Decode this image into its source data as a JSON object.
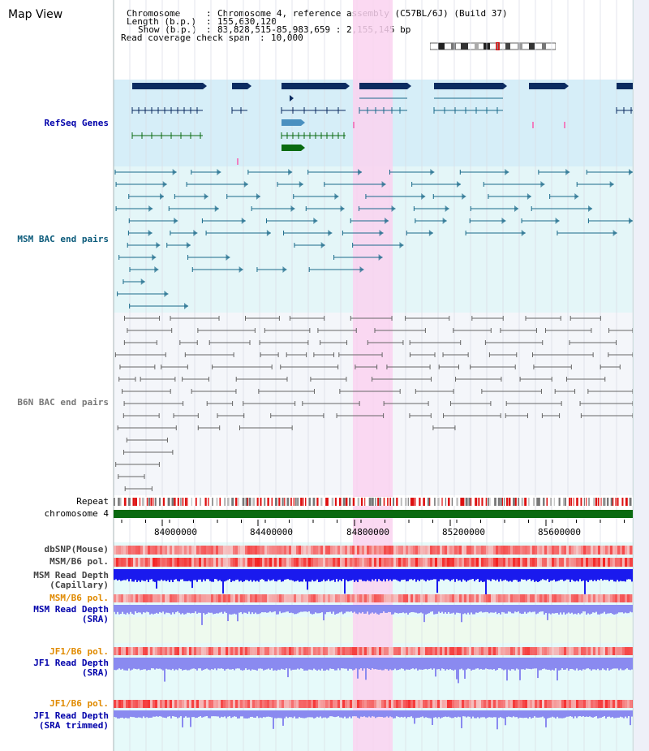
{
  "title": "Map View",
  "info": {
    "chromosome_label": "Chromosome",
    "chromosome_value": "Chromosome 4, reference assembly (C57BL/6J) (Build 37)",
    "length_label": "Length (b.p.)",
    "length_value": "155,630,120",
    "show_label": "Show (b.p.)",
    "show_value": "83,828,515-85,983,659 : 2,155,145 bp",
    "coverage_label": "Read coverage check span",
    "coverage_value": "10,000"
  },
  "tracks": {
    "refseq": "RefSeq Genes",
    "msm_bac": "MSM BAC end pairs",
    "b6n_bac": "B6N BAC end pairs",
    "repeat": "Repeat",
    "chromosome": "chromosome 4",
    "dbsnp": "dbSNP(Mouse)",
    "msm_b6_pol": "MSM/B6 pol.",
    "msm_rd_cap_1": "MSM Read Depth",
    "msm_rd_cap_2": "(Capillary)",
    "msm_b6_pol_2": "MSM/B6 pol.",
    "msm_rd_sra_1": "MSM Read Depth",
    "msm_rd_sra_2": "(SRA)",
    "jf1_b6_pol": "JF1/B6 pol.",
    "jf1_rd_sra_1": "JF1 Read Depth",
    "jf1_rd_sra_2": "(SRA)",
    "jf1_b6_pol_2": "JF1/B6 pol.",
    "jf1_rd_trim_1": "JF1 Read Depth",
    "jf1_rd_trim_2": "(SRA trimmed)"
  },
  "axis": {
    "ticks": [
      "84000000",
      "84400000",
      "84800000",
      "85200000",
      "85600000"
    ]
  },
  "colors": {
    "refseq_bg": "#d6eef8",
    "msm_bg": "#e4f6f8",
    "b6n_bg": "#f4f6fa",
    "highlight": "#fad2f0",
    "gene_dark": "#0b2b60",
    "gene_blue": "#4a90c0",
    "gene_green": "#0a6a10",
    "msm_line": "#1a6a8a",
    "b6n_line": "#666666",
    "chrom_bar": "#0a6a10",
    "depth_blue": "#1a1aee",
    "depth_light": "#8a8af0",
    "pol_red": "#ee4444",
    "label_blue": "#0000aa",
    "label_teal": "#0a5a7a",
    "label_orange": "#e08a00"
  }
}
